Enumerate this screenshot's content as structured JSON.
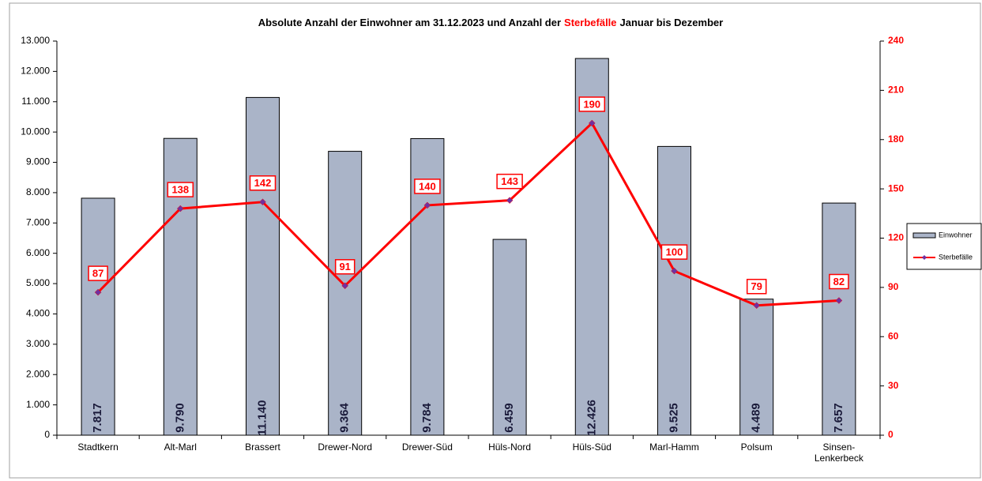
{
  "chart_data": {
    "type": "bar_line",
    "title": [
      "Absolute Anzahl der Einwohner am 31.12.2023 und Anzahl der",
      "Sterbefälle",
      "Januar bis Dezember"
    ],
    "categories": [
      "Stadtkern",
      "Alt-Marl",
      "Brassert",
      "Drewer-Nord",
      "Drewer-Süd",
      "Hüls-Nord",
      "Hüls-Süd",
      "Marl-Hamm",
      "Polsum",
      "Sinsen-Lenkerbeck"
    ],
    "series": [
      {
        "name": "Einwohner",
        "type": "bar",
        "color": "#aab4c8",
        "values": [
          7817,
          9790,
          11140,
          9364,
          9784,
          6459,
          12426,
          9525,
          4489,
          7657
        ],
        "value_labels": [
          "7.817",
          "9.790",
          "11.140",
          "9.364",
          "9.784",
          "6.459",
          "12.426",
          "9.525",
          "4.489",
          "7.657"
        ]
      },
      {
        "name": "Sterbefälle",
        "type": "line",
        "axis": "y2",
        "color": "#ff0000",
        "marker_color": "#7030a0",
        "values": [
          87,
          138,
          142,
          91,
          140,
          143,
          190,
          100,
          79,
          82
        ]
      }
    ],
    "ylim": [
      0,
      13000
    ],
    "yticks": [
      0,
      {
        "value": 1000,
        "label": "1.000"
      },
      {
        "value": 2000,
        "label": "2.000"
      },
      {
        "value": 3000,
        "label": "3.000"
      },
      {
        "value": 4000,
        "label": "4.000"
      },
      {
        "value": 5000,
        "label": "5.000"
      },
      {
        "value": 6000,
        "label": "6.000"
      },
      {
        "value": 7000,
        "label": "7.000"
      },
      {
        "value": 8000,
        "label": "8.000"
      },
      {
        "value": 9000,
        "label": "9.000"
      },
      {
        "value": 10000,
        "label": "10.000"
      },
      {
        "value": 11000,
        "label": "11.000"
      },
      {
        "value": 12000,
        "label": "12.000"
      },
      {
        "value": 13000,
        "label": "13.000"
      }
    ],
    "y2lim": [
      0,
      240
    ],
    "y2ticks": [
      0,
      30,
      60,
      90,
      120,
      150,
      180,
      210,
      240
    ],
    "legend": "right"
  }
}
